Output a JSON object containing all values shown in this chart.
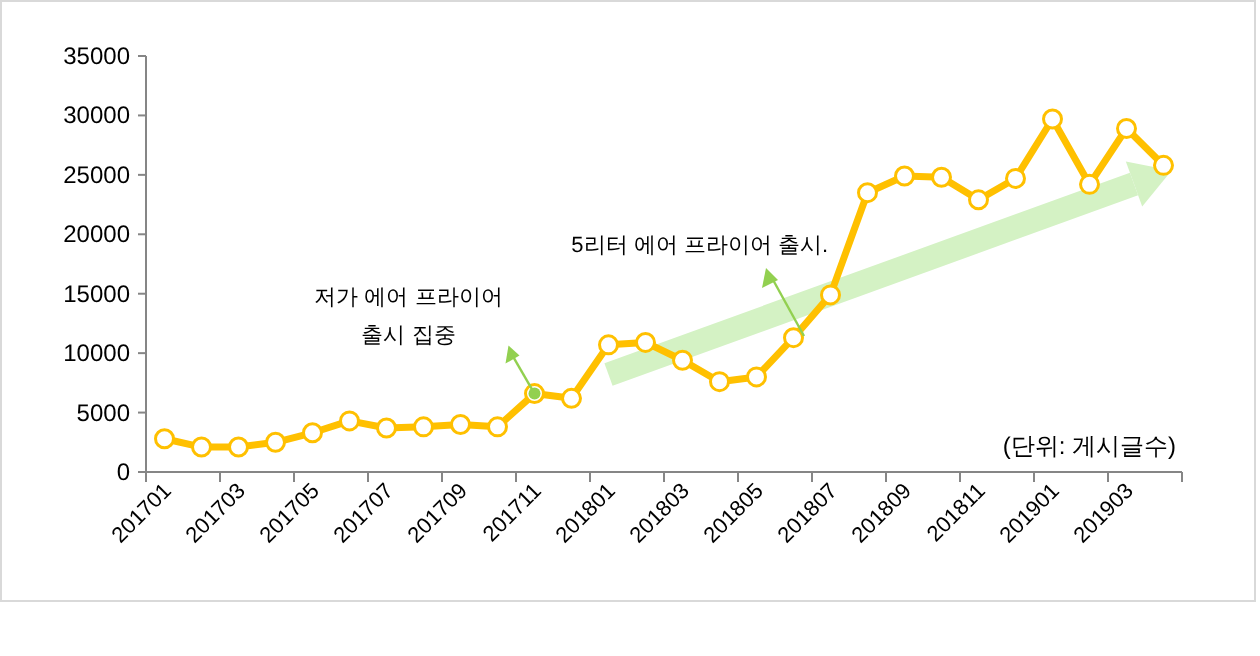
{
  "chart_data": {
    "type": "line",
    "categories": [
      "201701",
      null,
      "201703",
      null,
      "201705",
      null,
      "201707",
      null,
      "201709",
      null,
      "201711",
      null,
      "201801",
      null,
      "201803",
      null,
      "201805",
      null,
      "201807",
      null,
      "201809",
      null,
      "201811",
      null,
      "201901",
      null,
      "201903",
      null
    ],
    "series": [
      {
        "color": "#ffc000",
        "values": [
          2800,
          2100,
          2100,
          2500,
          3300,
          4300,
          3700,
          3800,
          4000,
          3800,
          6600,
          6200,
          10700,
          10900,
          9400,
          7600,
          8000,
          11300,
          14900,
          23500,
          24900,
          24800,
          22900,
          24700,
          29700,
          24200,
          28900,
          25800
        ]
      },
      {
        "type": "line",
        "color": "#d4f2c4",
        "marker": "none",
        "values": [
          null,
          null,
          null,
          null,
          null,
          null,
          null,
          null,
          null,
          null,
          null,
          null,
          8200,
          null,
          null,
          null,
          null,
          null,
          null,
          null,
          null,
          null,
          null,
          null,
          null,
          null,
          24000,
          null
        ]
      }
    ],
    "ylim": [
      0,
      35000
    ],
    "yticks": [
      0,
      5000,
      10000,
      15000,
      20000,
      25000,
      30000,
      35000
    ],
    "marker": "circle",
    "line_style": "solid",
    "grid": false,
    "annotations": [
      {
        "text": "저가 에어 프라이어\n출시 집중",
        "x": "201711",
        "y": 6600
      },
      "5리터 에어 프라이어 출시.",
      "(단위: 게시글수)"
    ]
  }
}
